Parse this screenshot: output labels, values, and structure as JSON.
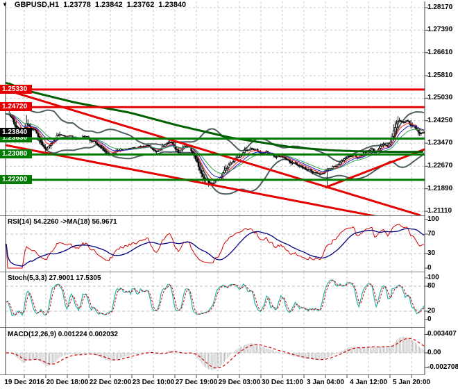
{
  "title": {
    "dropdown_icon": "▼",
    "symbol_period": "GBPUSD,H1",
    "open": "1.23778",
    "high": "1.23842",
    "low": "1.23762",
    "close": "1.23840"
  },
  "price_axis": {
    "ticks": [
      "1.28170",
      "1.27390",
      "1.26610",
      "1.25810",
      "1.25030",
      "1.24250",
      "1.23470",
      "1.22670",
      "1.21890",
      "1.21110"
    ]
  },
  "time_axis": {
    "ticks": [
      "19 Dec 2016",
      "20 Dec 18:00",
      "22 Dec 02:00",
      "23 Dec 10:00",
      "27 Dec 19:00",
      "29 Dec 03:00",
      "30 Dec 11:00",
      "3 Jan 04:00",
      "4 Jan 12:00",
      "5 Jan 20:00"
    ]
  },
  "badges": {
    "resistance": [
      "1.25330",
      "1.24720"
    ],
    "support": [
      "1.23630",
      "1.23080",
      "1.22200"
    ],
    "current": "1.23840"
  },
  "indicators": {
    "rsi": {
      "label": "RSI(14) 54.2260  ->MA(18) 56.9671",
      "period": 14,
      "ma_period": 18,
      "value": 54.226,
      "ma_value": 56.9671,
      "scale": [
        "100",
        "70",
        "30",
        "0"
      ],
      "scale_values": [
        100,
        70,
        30,
        0
      ],
      "level_lines": [
        70,
        30
      ]
    },
    "stoch": {
      "label": "Stoch(5,3,3) 27.9001 17.5305",
      "value_k": 27.9001,
      "value_d": 17.5305,
      "scale": [
        "100",
        "80",
        "20",
        "0"
      ],
      "scale_values": [
        100,
        80,
        20,
        0
      ],
      "level_lines": [
        80,
        20
      ]
    },
    "macd": {
      "label": "MACD(12,26,9) 0.001224 0.002032",
      "value": 0.001224,
      "signal": 0.002032,
      "scale": [
        "0.003407",
        "0.00",
        "-0.002708"
      ],
      "scale_values": [
        0.003407,
        0,
        -0.002708
      ]
    }
  },
  "colors": {
    "background": "#ffffff",
    "grid": "#c9c9c9",
    "frame": "#7a7a7a",
    "candle": "#000000",
    "resistance_line": "#e60000",
    "support_line": "#007a00",
    "trendline": "#e60000",
    "trend_ma": "#005f00",
    "bands": "#4d5e60",
    "ema_fast": "#ff2020",
    "ema_mid": "#2020c0",
    "ema_slow": "#30a050",
    "rsi_line": "#d00000",
    "rsi_ma": "#000080",
    "stoch_k": "#20b2aa",
    "stoch_d": "#d00000",
    "macd_hist": "#c0c0c0",
    "macd_signal": "#d00000",
    "badge_resistance_bg": "#e60000",
    "badge_support_bg": "#007a00",
    "badge_current_bg": "#000000"
  },
  "chart_data": {
    "type": "candlestick",
    "symbol": "GBPUSD",
    "timeframe": "H1",
    "bars": 290,
    "price_range": {
      "top": 1.2817,
      "bottom": 1.2111
    },
    "horizontal_levels": {
      "resistance": [
        1.2533,
        1.2472
      ],
      "support": [
        1.2363,
        1.2308,
        1.222
      ],
      "current_price": 1.2384
    },
    "price_path_anchors": [
      [
        0,
        1.2452
      ],
      [
        3,
        1.2438
      ],
      [
        6,
        1.2412
      ],
      [
        9,
        1.2392
      ],
      [
        11,
        1.2368
      ],
      [
        14,
        1.2418
      ],
      [
        17,
        1.2405
      ],
      [
        20,
        1.239
      ],
      [
        23,
        1.2362
      ],
      [
        25,
        1.2345
      ],
      [
        28,
        1.2325
      ],
      [
        30,
        1.2338
      ],
      [
        33,
        1.2355
      ],
      [
        35,
        1.2372
      ],
      [
        39,
        1.2376
      ],
      [
        44,
        1.237
      ],
      [
        49,
        1.236
      ],
      [
        53,
        1.2368
      ],
      [
        56,
        1.237
      ],
      [
        61,
        1.235
      ],
      [
        66,
        1.233
      ],
      [
        69,
        1.2312
      ],
      [
        71,
        1.2305
      ],
      [
        75,
        1.2312
      ],
      [
        80,
        1.2326
      ],
      [
        85,
        1.233
      ],
      [
        90,
        1.2331
      ],
      [
        95,
        1.234
      ],
      [
        99,
        1.2334
      ],
      [
        104,
        1.232
      ],
      [
        109,
        1.234
      ],
      [
        114,
        1.235
      ],
      [
        116,
        1.234
      ],
      [
        119,
        1.2316
      ],
      [
        122,
        1.233
      ],
      [
        125,
        1.234
      ],
      [
        127,
        1.233
      ],
      [
        130,
        1.2304
      ],
      [
        133,
        1.2268
      ],
      [
        136,
        1.2235
      ],
      [
        140,
        1.2212
      ],
      [
        144,
        1.2216
      ],
      [
        147,
        1.2226
      ],
      [
        151,
        1.2252
      ],
      [
        155,
        1.2276
      ],
      [
        158,
        1.2292
      ],
      [
        162,
        1.2306
      ],
      [
        165,
        1.232
      ],
      [
        169,
        1.233
      ],
      [
        173,
        1.2324
      ],
      [
        176,
        1.2312
      ],
      [
        180,
        1.2316
      ],
      [
        183,
        1.231
      ],
      [
        186,
        1.2301
      ],
      [
        188,
        1.2306
      ],
      [
        191,
        1.23
      ],
      [
        193,
        1.2294
      ],
      [
        195,
        1.2286
      ],
      [
        198,
        1.228
      ],
      [
        202,
        1.2271
      ],
      [
        205,
        1.2264
      ],
      [
        208,
        1.2257
      ],
      [
        212,
        1.2251
      ],
      [
        215,
        1.2247
      ],
      [
        218,
        1.2243
      ],
      [
        222,
        1.2253
      ],
      [
        226,
        1.2263
      ],
      [
        229,
        1.2271
      ],
      [
        232,
        1.2286
      ],
      [
        236,
        1.2296
      ],
      [
        240,
        1.2306
      ],
      [
        243,
        1.2298
      ],
      [
        247,
        1.2309
      ],
      [
        250,
        1.2319
      ],
      [
        253,
        1.2329
      ],
      [
        255,
        1.2321
      ],
      [
        258,
        1.2331
      ],
      [
        261,
        1.2346
      ],
      [
        264,
        1.2339
      ],
      [
        266,
        1.2356
      ],
      [
        268,
        1.2392
      ],
      [
        270,
        1.242
      ],
      [
        272,
        1.243
      ],
      [
        275,
        1.2421
      ],
      [
        277,
        1.2427
      ],
      [
        279,
        1.2413
      ],
      [
        282,
        1.2403
      ],
      [
        284,
        1.2392
      ],
      [
        286,
        1.2381
      ],
      [
        288,
        1.2387
      ],
      [
        289,
        1.2384
      ]
    ],
    "long_wicks": [
      {
        "index": 2,
        "high": 1.2473
      },
      {
        "index": 140,
        "low": 1.2196
      },
      {
        "index": 222,
        "low": 1.22
      }
    ],
    "trend_ma_anchors": [
      [
        0,
        1.2559
      ],
      [
        14,
        1.253
      ],
      [
        49,
        1.2487
      ],
      [
        86,
        1.2453
      ],
      [
        118,
        1.241
      ],
      [
        155,
        1.2367
      ],
      [
        198,
        1.2333
      ],
      [
        226,
        1.2322
      ],
      [
        250,
        1.2318
      ],
      [
        270,
        1.2317
      ],
      [
        290,
        1.2317
      ]
    ],
    "trendlines": [
      {
        "name": "descending-channel-upper",
        "points": [
          [
            1,
            1.25304
          ],
          [
            287,
            1.2097
          ]
        ]
      },
      {
        "name": "descending-channel-lower",
        "points": [
          [
            0,
            1.23401
          ],
          [
            290,
            1.2061
          ]
        ]
      },
      {
        "name": "ascending-support",
        "points": [
          [
            221,
            1.2193
          ],
          [
            290,
            1.2326
          ]
        ]
      }
    ],
    "overlays": {
      "bollinger_period": 34,
      "bollinger_dev": 2,
      "ema_periods": [
        8,
        13,
        21
      ]
    }
  }
}
